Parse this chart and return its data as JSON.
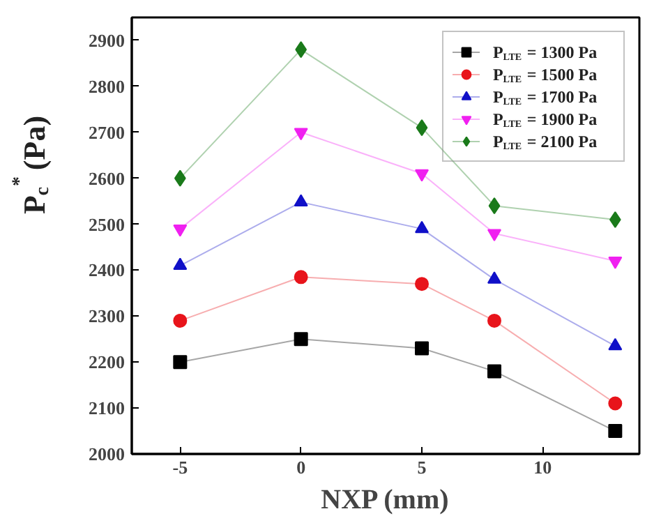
{
  "chart_data": {
    "type": "line",
    "xlabel": "NXP (mm)",
    "ylabel": "P$_{c}$$^{*}$ (Pa)",
    "x": [
      -5,
      0,
      5,
      8,
      13
    ],
    "xlim": [
      -7,
      14
    ],
    "xticks": [
      -5,
      0,
      5,
      10
    ],
    "ylim": [
      2000,
      2950
    ],
    "yticks": [
      2000,
      2100,
      2200,
      2300,
      2400,
      2500,
      2600,
      2700,
      2800,
      2900
    ],
    "grid": false,
    "legend": "top right",
    "series": [
      {
        "name": "P$_{LTE}$ = 1300 Pa",
        "color": "#000000",
        "marker": "square",
        "values": [
          2200,
          2250,
          2230,
          2180,
          2050
        ]
      },
      {
        "name": "P$_{LTE}$ = 1500 Pa",
        "color": "#e8141b",
        "marker": "circle",
        "values": [
          2290,
          2385,
          2370,
          2290,
          2110
        ]
      },
      {
        "name": "P$_{LTE}$ = 1700 Pa",
        "color": "#1010c8",
        "marker": "triangle",
        "values": [
          2410,
          2548,
          2490,
          2380,
          2235
        ]
      },
      {
        "name": "P$_{LTE}$ = 1900 Pa",
        "color": "#f020f0",
        "marker": "triangle_down",
        "values": [
          2490,
          2700,
          2610,
          2480,
          2420
        ]
      },
      {
        "name": "P$_{LTE}$ = 2100 Pa",
        "color": "#1a7a1a",
        "marker": "diamond",
        "values": [
          2600,
          2880,
          2710,
          2540,
          2510
        ]
      }
    ]
  }
}
